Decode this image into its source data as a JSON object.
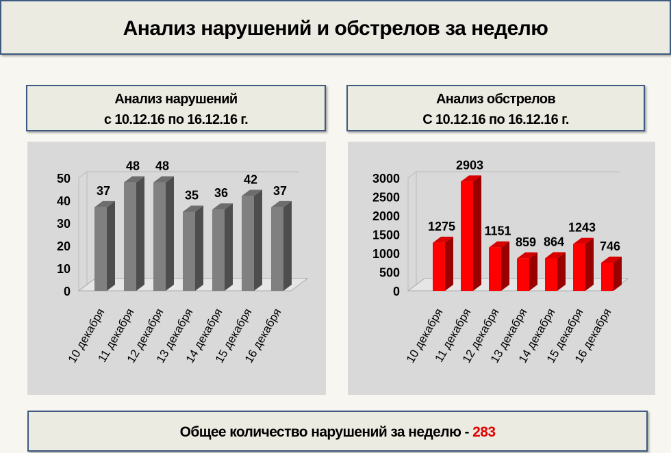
{
  "title": "Анализ нарушений и обстрелов за неделю",
  "chart_data": [
    {
      "type": "bar",
      "title_line1": "Анализ нарушений",
      "title_line2": "с 10.12.16 по 16.12.16 г.",
      "categories": [
        "10 декабря",
        "11 декабря",
        "12 декабря",
        "13 декабря",
        "14 декабря",
        "15 декабря",
        "16 декабря"
      ],
      "values": [
        37,
        48,
        48,
        35,
        36,
        42,
        37
      ],
      "ylim": [
        0,
        50
      ],
      "yticks": [
        0,
        10,
        20,
        30,
        40,
        50
      ],
      "color": "#808080",
      "grid": false,
      "style": "3d"
    },
    {
      "type": "bar",
      "title_line1": "Анализ обстрелов",
      "title_line2": "С 10.12.16 по 16.12.16 г.",
      "categories": [
        "10 декабря",
        "11 декабря",
        "12 декабря",
        "13 декабря",
        "14 декабря",
        "15 декабря",
        "16 декабря"
      ],
      "values": [
        1275,
        2903,
        1151,
        859,
        864,
        1243,
        746
      ],
      "ylim": [
        0,
        3000
      ],
      "yticks": [
        0,
        500,
        1000,
        1500,
        2000,
        2500,
        3000
      ],
      "color": "#ff0000",
      "grid": false,
      "style": "3d"
    }
  ],
  "summary": {
    "label": "Общее количество нарушений за неделю - ",
    "value": "283"
  }
}
